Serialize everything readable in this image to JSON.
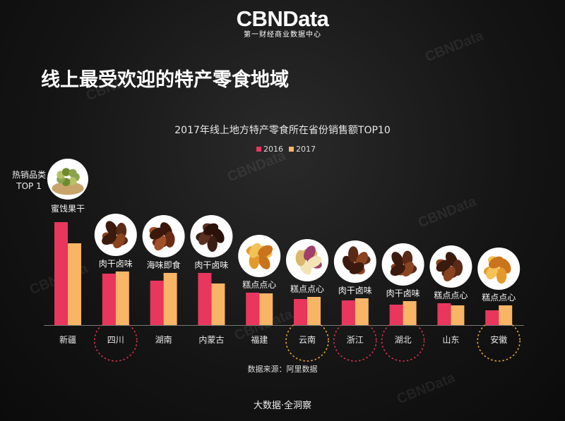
{
  "brand": {
    "logo": "CBNData",
    "subtitle": "第一财经商业数据中心"
  },
  "title": "线上最受欢迎的特产零食地域",
  "top_label": "热销品类 TOP 1",
  "source": "数据来源：阿里数据",
  "footer": "大数据·全洞察",
  "watermark": "CBNData",
  "colors": {
    "s2016": "#e8365d",
    "s2017": "#f7b565",
    "highlight_red": "#d8304f",
    "highlight_orange": "#e8a33a"
  },
  "chart_data": {
    "type": "bar",
    "title": "2017年线上地方特产零食所在省份销售额TOP10",
    "categories": [
      "新疆",
      "四川",
      "湖南",
      "内蒙古",
      "福建",
      "云南",
      "浙江",
      "湖北",
      "山东",
      "安徽"
    ],
    "series": [
      {
        "name": "2016",
        "values": [
          146,
          73,
          63,
          74,
          46,
          37,
          35,
          29,
          31,
          21
        ]
      },
      {
        "name": "2017",
        "values": [
          116,
          76,
          74,
          59,
          45,
          40,
          38,
          34,
          28,
          28
        ]
      }
    ],
    "top_items": [
      "蜜饯果干",
      "肉干卤味",
      "海味即食",
      "肉干卤味",
      "糕点点心",
      "糕点点心",
      "肉干卤味",
      "肉干卤味",
      "糕点点心",
      "糕点点心"
    ],
    "item_icons": [
      "dried-fruit-icon",
      "braised-meat-icon",
      "seafood-snack-icon",
      "beef-jerky-icon",
      "pastry-icon",
      "flower-cake-icon",
      "braised-meat-icon",
      "braised-meat-icon",
      "braised-meat-icon",
      "pastry-icon"
    ],
    "highlight_circles": [
      {
        "category": "四川",
        "color": "red"
      },
      {
        "category": "云南",
        "color": "orange"
      },
      {
        "category": "浙江",
        "color": "red"
      },
      {
        "category": "湖北",
        "color": "red"
      },
      {
        "category": "安徽",
        "color": "orange"
      }
    ]
  }
}
